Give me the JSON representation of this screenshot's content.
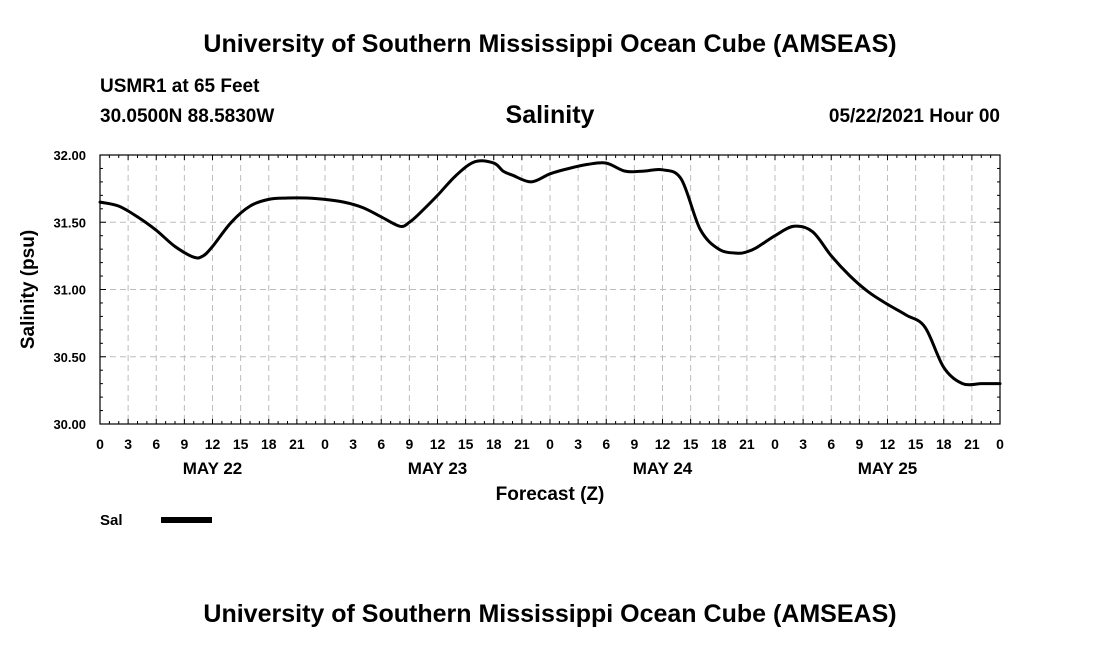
{
  "header": {
    "title": "University of Southern Mississippi Ocean Cube (AMSEAS)",
    "station": "USMR1 at 65 Feet",
    "coords": "30.0500N  88.5830W",
    "chart_title": "Salinity",
    "datetime": "05/22/2021 Hour 00"
  },
  "footer": {
    "title": "University of Southern Mississippi Ocean Cube (AMSEAS)"
  },
  "chart_data": {
    "type": "line",
    "title": "Salinity",
    "xlabel": "Forecast (Z)",
    "ylabel": "Salinity (psu)",
    "ylim": [
      30.0,
      32.0
    ],
    "xlim": [
      0,
      96
    ],
    "grid": true,
    "yticks": [
      30.0,
      30.5,
      31.0,
      31.5,
      32.0
    ],
    "ytick_labels": [
      "30.00",
      "30.50",
      "31.00",
      "31.50",
      "32.00"
    ],
    "xticks": [
      0,
      3,
      6,
      9,
      12,
      15,
      18,
      21,
      24,
      27,
      30,
      33,
      36,
      39,
      42,
      45,
      48,
      51,
      54,
      57,
      60,
      63,
      66,
      69,
      72,
      75,
      78,
      81,
      84,
      87,
      90,
      93,
      96
    ],
    "xtick_labels": [
      "0",
      "3",
      "6",
      "9",
      "12",
      "15",
      "18",
      "21",
      "0",
      "3",
      "6",
      "9",
      "12",
      "15",
      "18",
      "21",
      "0",
      "3",
      "6",
      "9",
      "12",
      "15",
      "18",
      "21",
      "0",
      "3",
      "6",
      "9",
      "12",
      "15",
      "18",
      "21",
      "0"
    ],
    "day_labels": [
      {
        "x": 12,
        "label": "MAY 22"
      },
      {
        "x": 36,
        "label": "MAY 23"
      },
      {
        "x": 60,
        "label": "MAY 24"
      },
      {
        "x": 84,
        "label": "MAY 25"
      }
    ],
    "legend": {
      "position": "bottom-left",
      "label": "Sal"
    },
    "series": [
      {
        "name": "Sal",
        "x": [
          0,
          2,
          4,
          6,
          8,
          10,
          11,
          12,
          14,
          16,
          18,
          20,
          22,
          24,
          26,
          28,
          30,
          32,
          33,
          34,
          36,
          38,
          40,
          42,
          43,
          44,
          46,
          48,
          50,
          52,
          54,
          56,
          58,
          60,
          62,
          64,
          66,
          68,
          69,
          70,
          72,
          74,
          76,
          78,
          80,
          82,
          84,
          86,
          88,
          90,
          92,
          94,
          95,
          96
        ],
        "values": [
          31.65,
          31.62,
          31.54,
          31.44,
          31.32,
          31.24,
          31.25,
          31.32,
          31.5,
          31.62,
          31.67,
          31.68,
          31.68,
          31.67,
          31.65,
          31.61,
          31.54,
          31.47,
          31.5,
          31.56,
          31.7,
          31.85,
          31.95,
          31.94,
          31.88,
          31.85,
          31.8,
          31.86,
          31.9,
          31.93,
          31.94,
          31.88,
          31.88,
          31.89,
          31.82,
          31.45,
          31.3,
          31.27,
          31.28,
          31.31,
          31.4,
          31.47,
          31.43,
          31.25,
          31.1,
          30.98,
          30.89,
          30.81,
          30.72,
          30.42,
          30.3,
          30.3,
          30.3,
          30.3
        ],
        "color": "#000000"
      }
    ]
  }
}
